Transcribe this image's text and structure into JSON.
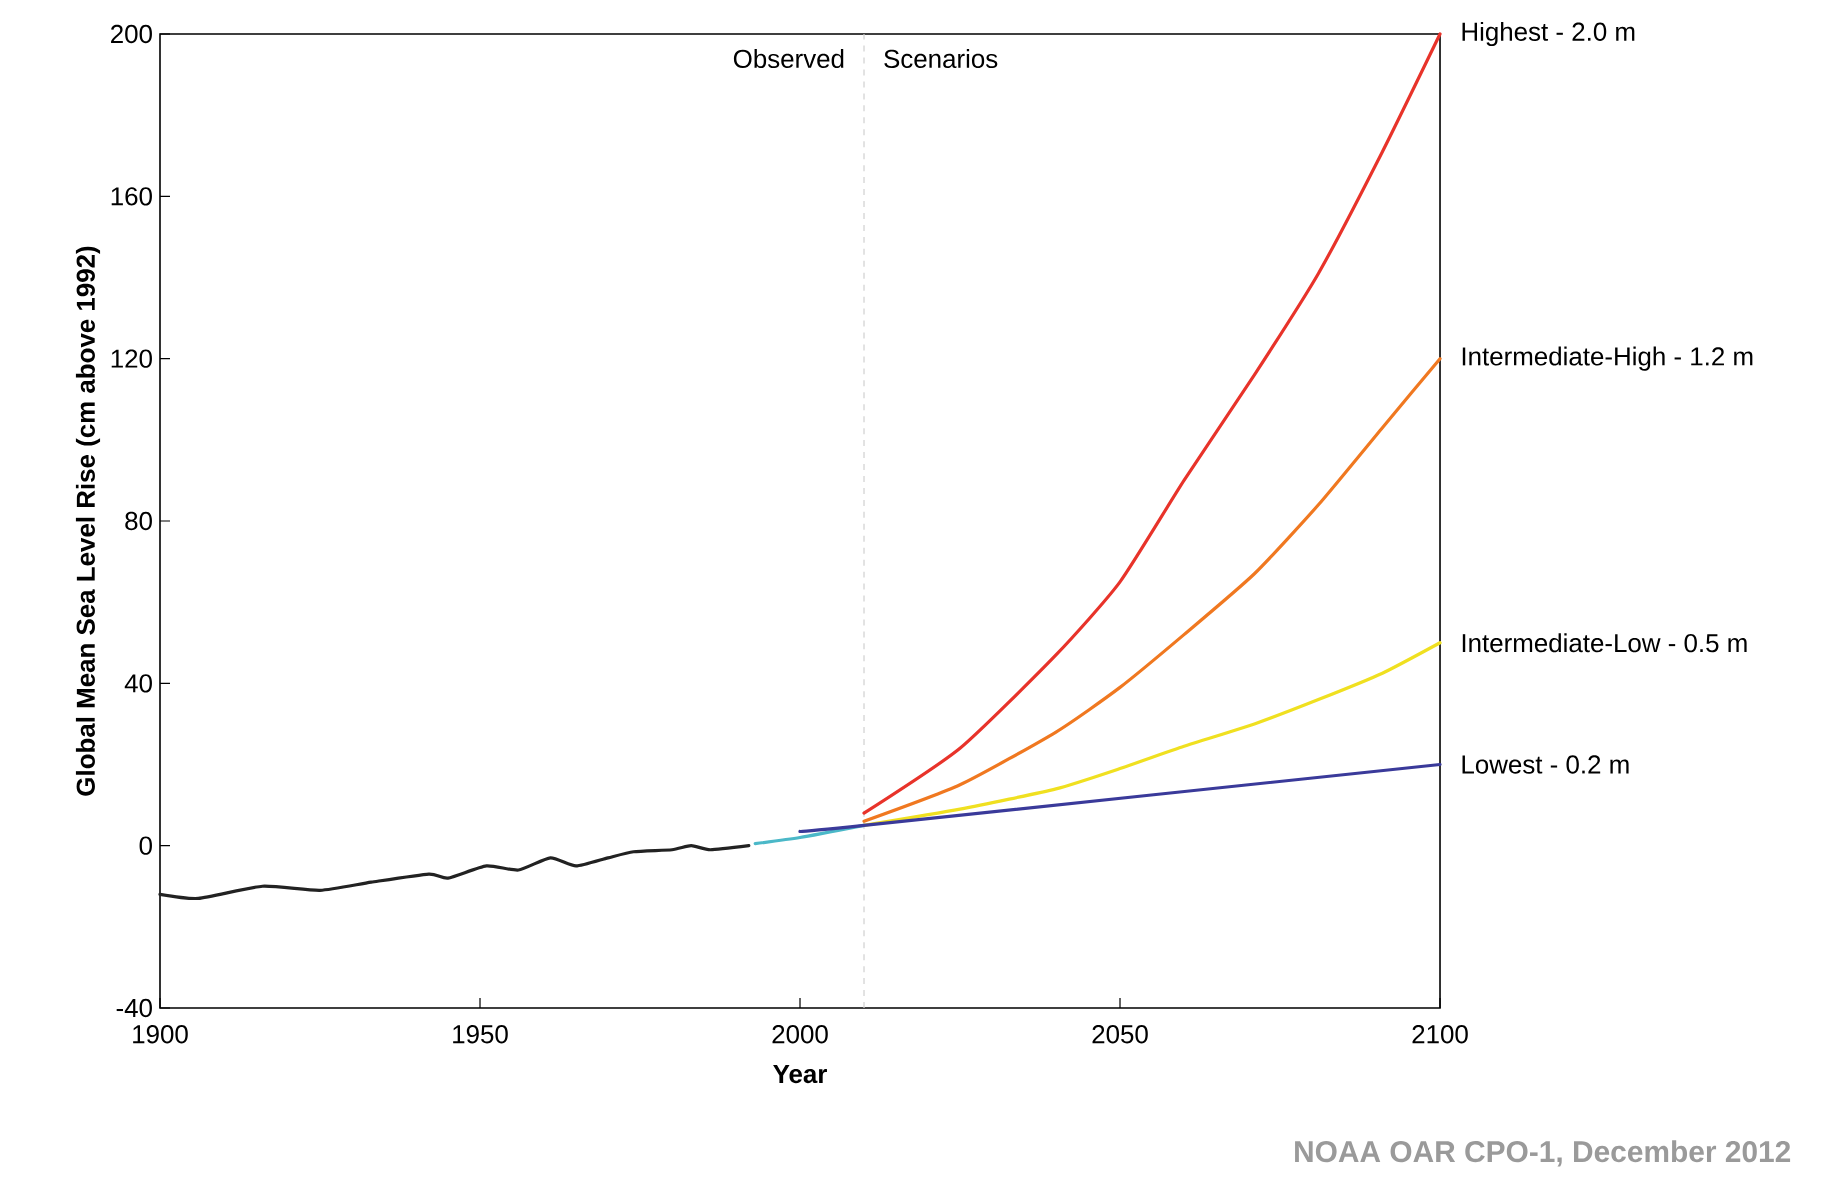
{
  "chart_data": {
    "type": "line",
    "xlabel": "Year",
    "ylabel": "Global Mean Sea Level Rise (cm above 1992)",
    "xlim": [
      1900,
      2100
    ],
    "ylim": [
      -40,
      200
    ],
    "xticks": [
      1900,
      1950,
      2000,
      2050,
      2100
    ],
    "yticks": [
      -40,
      0,
      40,
      80,
      120,
      160,
      200
    ],
    "grid": false,
    "legend": false,
    "marker": "none",
    "line_style": "solid",
    "ref_lines": [
      {
        "axis": "x",
        "value": 2010,
        "color": "#d0d0d0",
        "line_style": "dashed"
      }
    ],
    "annotations": [
      "Observed",
      "Scenarios",
      "NOAA OAR CPO-1, December 2012"
    ],
    "series": [
      {
        "color": "#222222",
        "x": [
          1900,
          1906,
          1916,
          1925,
          1933,
          1942,
          1945,
          1951,
          1956,
          1961,
          1965,
          1970,
          1974,
          1980,
          1983,
          1986,
          1992
        ],
        "values": [
          -12,
          -13,
          -10,
          -11,
          -9,
          -7,
          -8,
          -5,
          -6,
          -3,
          -5,
          -3,
          -1.5,
          -1,
          0,
          -1,
          0
        ]
      },
      {
        "color": "#4bb8c8",
        "x": [
          1993,
          2000,
          2010
        ],
        "values": [
          0.5,
          2,
          5
        ]
      },
      {
        "name": "Highest - 2.0 m",
        "color": "#e8332a",
        "x": [
          2010,
          2025,
          2040,
          2050,
          2060,
          2071,
          2081,
          2091,
          2100
        ],
        "values": [
          8,
          24,
          47,
          65,
          90,
          116,
          141,
          171,
          200
        ]
      },
      {
        "name": "Intermediate-High - 1.2 m",
        "color": "#f07820",
        "x": [
          2010,
          2025,
          2040,
          2050,
          2060,
          2071,
          2081,
          2091,
          2100
        ],
        "values": [
          6,
          15,
          28,
          39,
          52,
          67,
          84,
          103,
          120
        ]
      },
      {
        "name": "Intermediate-Low - 0.5 m",
        "color": "#f0e020",
        "x": [
          2010,
          2025,
          2040,
          2050,
          2060,
          2071,
          2081,
          2091,
          2100
        ],
        "values": [
          5,
          9,
          14,
          19,
          24.5,
          30,
          36,
          42.5,
          50
        ]
      },
      {
        "name": "Lowest - 0.2 m",
        "color": "#3a3a9a",
        "x": [
          2000,
          2010,
          2100
        ],
        "values": [
          3.5,
          5,
          20
        ]
      }
    ]
  }
}
